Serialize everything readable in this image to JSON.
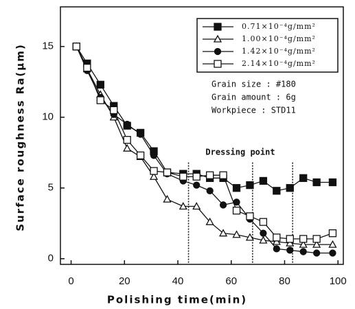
{
  "chart_data": {
    "type": "line",
    "x_label": "Polishing time(min)",
    "y_label": "Surface roughness Ra(μm)",
    "x": [
      2,
      6,
      11,
      16,
      21,
      26,
      31,
      36,
      42,
      47,
      52,
      57,
      62,
      67,
      72,
      77,
      82,
      87,
      92,
      98
    ],
    "xlim": [
      -4,
      102
    ],
    "xticks": [
      0,
      20,
      40,
      60,
      80,
      100
    ],
    "ylim": [
      -0.4,
      17.8
    ],
    "yticks": [
      0,
      5,
      10,
      15
    ],
    "series": [
      {
        "name": "0.71×10⁻⁴g/mm²",
        "color": "#111111",
        "marker": "square",
        "filled": true,
        "values": [
          15.0,
          13.8,
          12.3,
          10.8,
          9.4,
          8.9,
          7.6,
          6.1,
          6.0,
          6.0,
          5.7,
          5.7,
          5.0,
          5.2,
          5.5,
          4.8,
          5.0,
          5.7,
          5.4,
          5.4
        ]
      },
      {
        "name": "1.00×10⁻⁴g/mm²",
        "color": "#111111",
        "marker": "triangle",
        "filled": false,
        "values": [
          15.0,
          13.4,
          11.6,
          10.0,
          7.8,
          7.2,
          5.8,
          4.2,
          3.7,
          3.7,
          2.6,
          1.8,
          1.7,
          1.5,
          1.3,
          1.2,
          1.1,
          1.0,
          1.0,
          1.0
        ]
      },
      {
        "name": "1.42×10⁻⁴g/mm²",
        "color": "#111111",
        "marker": "circle",
        "filled": true,
        "values": [
          15.0,
          13.3,
          11.4,
          10.2,
          9.5,
          8.8,
          7.3,
          6.0,
          5.5,
          5.2,
          4.8,
          3.8,
          4.0,
          2.8,
          1.8,
          0.7,
          0.6,
          0.5,
          0.4,
          0.4
        ]
      },
      {
        "name": "2.14×10⁻⁴g/mm²",
        "color": "#111111",
        "marker": "square",
        "filled": false,
        "values": [
          15.0,
          13.5,
          11.2,
          10.5,
          8.4,
          7.3,
          6.2,
          6.1,
          5.8,
          5.8,
          5.9,
          5.9,
          3.4,
          3.0,
          2.6,
          1.5,
          1.4,
          1.4,
          1.4,
          1.8
        ]
      }
    ],
    "dressing_points": [
      44,
      68,
      83
    ],
    "annotations": [
      "Grain size : #180",
      "Grain amount : 6g",
      "Workpiece : STD11",
      "Dressing point"
    ]
  }
}
